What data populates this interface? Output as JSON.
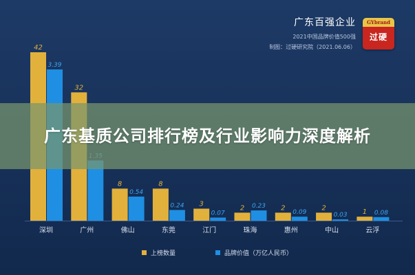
{
  "header": {
    "title": "广东百强企业",
    "subtitle": "2021中国品牌价值500强",
    "source": "制图：过硬研究院（2021.06.06）"
  },
  "logo": {
    "top_text": "GYbrand",
    "main_text": "过硬"
  },
  "banner": {
    "text": "广东基质公司排行榜及行业影响力深度解析"
  },
  "colors": {
    "count": "#e2b13c",
    "value": "#1e8fe3",
    "background": "#1a365f"
  },
  "chart_data": {
    "type": "bar",
    "categories": [
      "深圳",
      "广州",
      "佛山",
      "东莞",
      "江门",
      "珠海",
      "惠州",
      "中山",
      "云浮"
    ],
    "series": [
      {
        "name": "上榜数量",
        "values": [
          42,
          32,
          8,
          8,
          3,
          2,
          2,
          2,
          1
        ],
        "labels": [
          "42",
          "32",
          "8",
          "8",
          "3",
          "2",
          "2",
          "2",
          "1"
        ]
      },
      {
        "name": "品牌价值（万亿人民币）",
        "values": [
          3.39,
          1.35,
          0.54,
          0.24,
          0.07,
          0.23,
          0.09,
          0.03,
          0.08
        ],
        "labels": [
          "3.39",
          "1.35",
          "0.54",
          "0.24",
          "0.07",
          "0.23",
          "0.09",
          "0.03",
          "0.08"
        ]
      }
    ],
    "legend": "bottom",
    "grid": false
  }
}
